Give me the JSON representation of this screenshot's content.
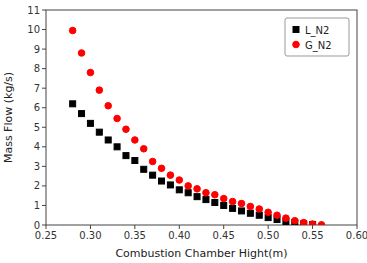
{
  "chart_data": {
    "type": "scatter",
    "xlabel": "Combustion Chamber Hight(m)",
    "ylabel": "Mass Flow (kg/s)",
    "xlim": [
      0.25,
      0.6
    ],
    "ylim": [
      0,
      11
    ],
    "xticks": [
      0.25,
      {
        "value": 0.3,
        "label": "0.30"
      },
      0.35,
      {
        "value": 0.4,
        "label": "0.40"
      },
      0.45,
      {
        "value": 0.5,
        "label": "0.50"
      },
      0.55,
      {
        "value": 0.6,
        "label": "0.60"
      }
    ],
    "yticks": [
      0,
      1,
      2,
      3,
      4,
      5,
      6,
      7,
      8,
      9,
      10,
      11
    ],
    "grid": false,
    "legend": "upper right",
    "series": [
      {
        "name": "L_N2",
        "color": "#000000",
        "marker": "square",
        "x": [
          0.28,
          0.29,
          0.3,
          0.31,
          0.32,
          0.33,
          0.34,
          0.35,
          0.36,
          0.37,
          0.38,
          0.39,
          0.4,
          0.41,
          0.42,
          0.43,
          0.44,
          0.45,
          0.46,
          0.47,
          0.48,
          0.49,
          0.5,
          0.51,
          0.52,
          0.53,
          0.54,
          0.55
        ],
        "values": [
          6.2,
          5.7,
          5.2,
          4.75,
          4.35,
          4.0,
          3.55,
          3.3,
          2.85,
          2.55,
          2.25,
          2.05,
          1.8,
          1.65,
          1.45,
          1.3,
          1.15,
          1.0,
          0.85,
          0.72,
          0.6,
          0.5,
          0.38,
          0.28,
          0.18,
          0.12,
          0.06,
          0.02
        ]
      },
      {
        "name": "G_N2",
        "color": "#ff0000",
        "marker": "circle",
        "x": [
          0.28,
          0.29,
          0.3,
          0.31,
          0.32,
          0.33,
          0.34,
          0.35,
          0.36,
          0.37,
          0.38,
          0.39,
          0.4,
          0.41,
          0.42,
          0.43,
          0.44,
          0.45,
          0.46,
          0.47,
          0.48,
          0.49,
          0.5,
          0.51,
          0.52,
          0.53,
          0.54,
          0.55,
          0.56
        ],
        "values": [
          9.95,
          8.8,
          7.8,
          6.9,
          6.1,
          5.45,
          4.9,
          4.35,
          3.9,
          3.25,
          2.9,
          2.55,
          2.3,
          2.0,
          1.85,
          1.65,
          1.55,
          1.35,
          1.2,
          1.1,
          0.95,
          0.82,
          0.65,
          0.5,
          0.35,
          0.22,
          0.12,
          0.05,
          0.01
        ]
      }
    ]
  }
}
